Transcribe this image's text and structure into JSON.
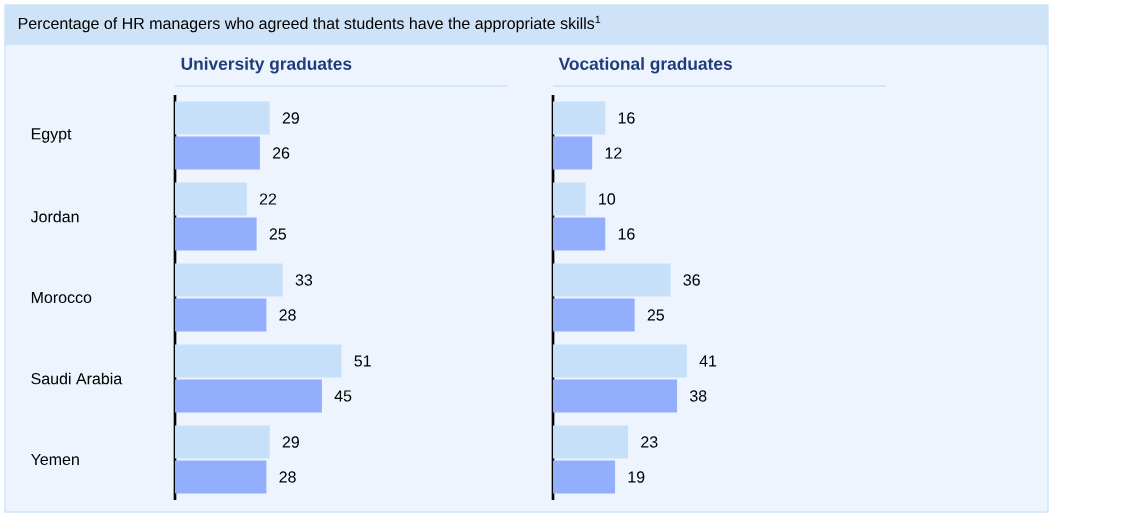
{
  "chart_data": [
    {
      "type": "bar",
      "orientation": "horizontal",
      "title": "University graduates",
      "annotations": [
        "Percentage of HR managers who agreed that students have the appropriate skills$^{1}$"
      ],
      "categories": [
        "Egypt",
        "Jordan",
        "Morocco",
        "Saudi Arabia",
        "Yemen"
      ],
      "data_labels": true,
      "tick_labels": "y",
      "series": [
        {
          "color": "#c6e0fa",
          "values": [
            29,
            22,
            33,
            51,
            29
          ]
        },
        {
          "color": "#93aefd",
          "values": [
            26,
            25,
            28,
            45,
            28
          ]
        }
      ]
    },
    {
      "type": "bar",
      "orientation": "horizontal",
      "title": "Vocational graduates",
      "categories": [
        null,
        null,
        null,
        null,
        null
      ],
      "data_labels": true,
      "tick_labels": false,
      "series": [
        {
          "color": "#c6e0fa",
          "values": [
            16,
            10,
            36,
            41,
            23
          ]
        },
        {
          "color": "#93aefd",
          "values": [
            12,
            16,
            25,
            38,
            19
          ]
        }
      ]
    }
  ]
}
